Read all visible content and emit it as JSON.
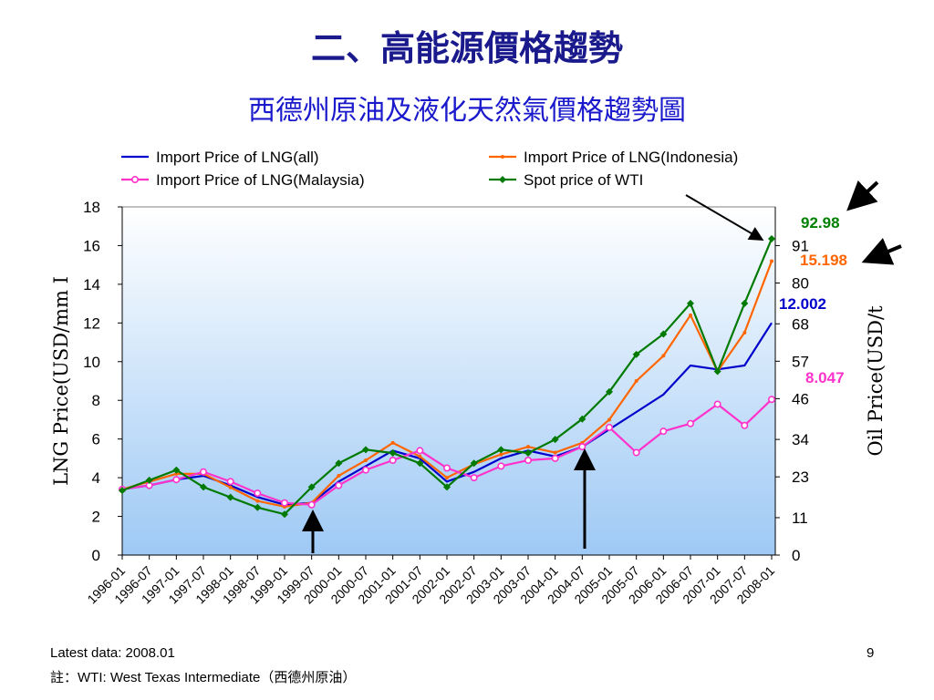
{
  "slide": {
    "title": "二、高能源價格趨勢",
    "subtitle": "西德州原油及液化天然氣價格趨勢圖",
    "latest": "Latest data: 2008.01",
    "note": "註：WTI: West Texas Intermediate（西德州原油）",
    "page_number": "9"
  },
  "chart_data": {
    "type": "line",
    "title": "",
    "xlabel": "",
    "ylabel": "LNG Price(USD/mm I",
    "ylabel_right": "Oil Price(USD/t",
    "ylim": [
      0,
      18
    ],
    "yticks": [
      "0",
      "2",
      "4",
      "6",
      "8",
      "10",
      "12",
      "14",
      "16",
      "18"
    ],
    "yticks_right": [
      "0",
      "11",
      "23",
      "34",
      "46",
      "57",
      "68",
      "80",
      "91"
    ],
    "x_start": "1996-01",
    "x_end": "2008-01",
    "xtick_labels": [
      "1996-01",
      "1996-07",
      "1997-01",
      "1997-07",
      "1998-01",
      "1998-07",
      "1999-01",
      "1999-07",
      "2000-01",
      "2000-07",
      "2001-01",
      "2001-07",
      "2002-01",
      "2002-07",
      "2003-01",
      "2003-07",
      "2004-01",
      "2004-07",
      "2005-01",
      "2005-07",
      "2006-01",
      "2006-07",
      "2007-01",
      "2007-07",
      "2008-01"
    ],
    "grid": false,
    "legend_position": "top",
    "series": [
      {
        "name": "Import Price of LNG(all)",
        "color": "#0000cc",
        "marker": "none",
        "points": [
          [
            "1996-01",
            3.4
          ],
          [
            "1996-07",
            3.6
          ],
          [
            "1997-01",
            3.9
          ],
          [
            "1997-07",
            4.1
          ],
          [
            "1998-01",
            3.6
          ],
          [
            "1998-07",
            3.0
          ],
          [
            "1999-01",
            2.6
          ],
          [
            "1999-07",
            2.7
          ],
          [
            "2000-01",
            3.8
          ],
          [
            "2000-07",
            4.6
          ],
          [
            "2001-01",
            5.4
          ],
          [
            "2001-07",
            5.0
          ],
          [
            "2002-01",
            3.8
          ],
          [
            "2002-07",
            4.3
          ],
          [
            "2003-01",
            5.0
          ],
          [
            "2003-07",
            5.4
          ],
          [
            "2004-01",
            5.1
          ],
          [
            "2004-07",
            5.6
          ],
          [
            "2005-01",
            6.5
          ],
          [
            "2005-07",
            7.4
          ],
          [
            "2006-01",
            8.3
          ],
          [
            "2006-07",
            9.8
          ],
          [
            "2007-01",
            9.6
          ],
          [
            "2007-07",
            9.8
          ],
          [
            "2008-01",
            12.002
          ]
        ]
      },
      {
        "name": "Import Price of LNG(Indonesia)",
        "color": "#ff6600",
        "marker": "dot",
        "points": [
          [
            "1996-01",
            3.4
          ],
          [
            "1996-07",
            3.8
          ],
          [
            "1997-01",
            4.2
          ],
          [
            "1997-07",
            4.2
          ],
          [
            "1998-01",
            3.5
          ],
          [
            "1998-07",
            2.8
          ],
          [
            "1999-01",
            2.5
          ],
          [
            "1999-07",
            2.7
          ],
          [
            "2000-01",
            4.1
          ],
          [
            "2000-07",
            4.9
          ],
          [
            "2001-01",
            5.8
          ],
          [
            "2001-07",
            5.1
          ],
          [
            "2002-01",
            4.0
          ],
          [
            "2002-07",
            4.7
          ],
          [
            "2003-01",
            5.2
          ],
          [
            "2003-07",
            5.6
          ],
          [
            "2004-01",
            5.3
          ],
          [
            "2004-07",
            5.8
          ],
          [
            "2005-01",
            7.0
          ],
          [
            "2005-07",
            9.0
          ],
          [
            "2006-01",
            10.3
          ],
          [
            "2006-07",
            12.4
          ],
          [
            "2007-01",
            9.5
          ],
          [
            "2007-07",
            11.5
          ],
          [
            "2008-01",
            15.198
          ]
        ]
      },
      {
        "name": "Import Price of LNG(Malaysia)",
        "color": "#ff33cc",
        "marker": "circle",
        "points": [
          [
            "1996-01",
            3.4
          ],
          [
            "1996-07",
            3.6
          ],
          [
            "1997-01",
            3.9
          ],
          [
            "1997-07",
            4.3
          ],
          [
            "1998-01",
            3.8
          ],
          [
            "1998-07",
            3.2
          ],
          [
            "1999-01",
            2.7
          ],
          [
            "1999-07",
            2.6
          ],
          [
            "2000-01",
            3.6
          ],
          [
            "2000-07",
            4.4
          ],
          [
            "2001-01",
            4.9
          ],
          [
            "2001-07",
            5.4
          ],
          [
            "2002-01",
            4.5
          ],
          [
            "2002-07",
            4.0
          ],
          [
            "2003-01",
            4.6
          ],
          [
            "2003-07",
            4.9
          ],
          [
            "2004-01",
            5.0
          ],
          [
            "2004-07",
            5.6
          ],
          [
            "2005-01",
            6.6
          ],
          [
            "2005-07",
            5.3
          ],
          [
            "2006-01",
            6.4
          ],
          [
            "2006-07",
            6.8
          ],
          [
            "2007-01",
            7.8
          ],
          [
            "2007-07",
            6.7
          ],
          [
            "2008-01",
            8.047
          ]
        ]
      },
      {
        "name": "Spot price of WTI",
        "color": "#007a00",
        "marker": "diamond",
        "points": [
          [
            "1996-01",
            19
          ],
          [
            "1996-07",
            22
          ],
          [
            "1997-01",
            25
          ],
          [
            "1997-07",
            20
          ],
          [
            "1998-01",
            17
          ],
          [
            "1998-07",
            14
          ],
          [
            "1999-01",
            12
          ],
          [
            "1999-07",
            20
          ],
          [
            "2000-01",
            27
          ],
          [
            "2000-07",
            31
          ],
          [
            "2001-01",
            30
          ],
          [
            "2001-07",
            27
          ],
          [
            "2002-01",
            20
          ],
          [
            "2002-07",
            27
          ],
          [
            "2003-01",
            31
          ],
          [
            "2003-07",
            30
          ],
          [
            "2004-01",
            34
          ],
          [
            "2004-07",
            40
          ],
          [
            "2005-01",
            48
          ],
          [
            "2005-07",
            59
          ],
          [
            "2006-01",
            65
          ],
          [
            "2006-07",
            74
          ],
          [
            "2007-01",
            54
          ],
          [
            "2007-07",
            74
          ],
          [
            "2008-01",
            92.98
          ]
        ]
      }
    ],
    "end_labels": [
      {
        "text": "92.98",
        "color": "#008000"
      },
      {
        "text": "15.198",
        "color": "#ff6600"
      },
      {
        "text": "12.002",
        "color": "#0000cc"
      },
      {
        "text": "8.047",
        "color": "#ff33cc"
      }
    ]
  }
}
